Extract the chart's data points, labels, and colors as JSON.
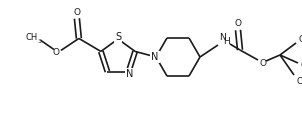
{
  "bg_color": "#ffffff",
  "line_color": "#1a1a1a",
  "line_width": 1.2,
  "font_size": 6.5,
  "figsize": [
    3.02,
    1.17
  ],
  "dpi": 100,
  "xlim": [
    0,
    302
  ],
  "ylim": [
    0,
    117
  ]
}
